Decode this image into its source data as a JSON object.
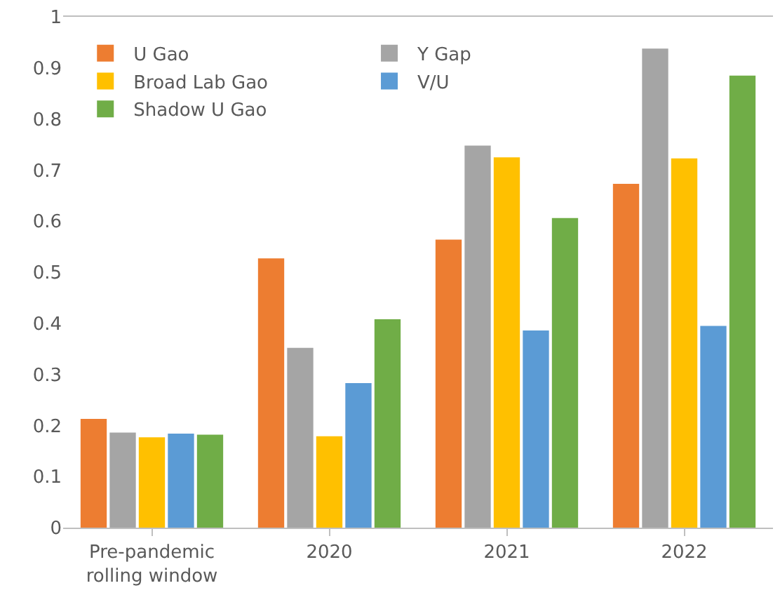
{
  "chart_data": {
    "type": "bar",
    "categories": [
      "Pre-pandemic rolling window",
      "2020",
      "2021",
      "2022"
    ],
    "series": [
      {
        "name": "U Gao",
        "color": "#ed7d31",
        "values": [
          0.213,
          0.527,
          0.564,
          0.673
        ]
      },
      {
        "name": "Y Gap",
        "color": "#a5a5a5",
        "values": [
          0.186,
          0.352,
          0.748,
          0.938
        ]
      },
      {
        "name": "Broad Lab Gao",
        "color": "#ffc000",
        "values": [
          0.177,
          0.179,
          0.725,
          0.723
        ]
      },
      {
        "name": "V/U",
        "color": "#5b9bd5",
        "values": [
          0.184,
          0.283,
          0.386,
          0.395
        ]
      },
      {
        "name": "Shadow U Gao",
        "color": "#70ad47",
        "values": [
          0.182,
          0.408,
          0.606,
          0.885
        ]
      }
    ],
    "ylim": [
      0,
      1
    ],
    "yticks": [
      0,
      0.1,
      0.2,
      0.3,
      0.4,
      0.5,
      0.6,
      0.7,
      0.8,
      0.9,
      1
    ],
    "grid": false,
    "legend": "top left"
  }
}
